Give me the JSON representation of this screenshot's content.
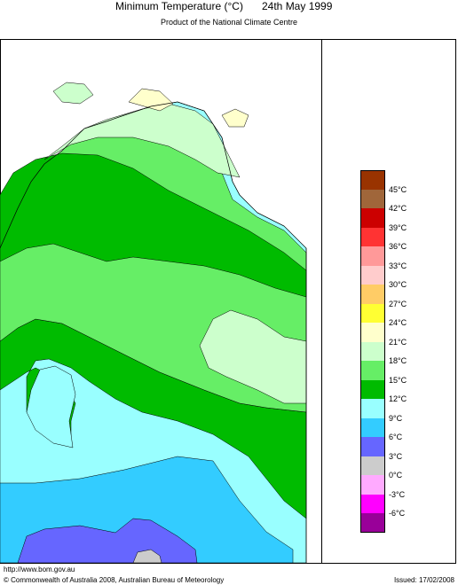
{
  "header": {
    "title": "Minimum Temperature (°C)",
    "date": "24th May 1999",
    "subtitle": "Product of the National Climate Centre"
  },
  "legend": {
    "labels": [
      "45°C",
      "42°C",
      "39°C",
      "36°C",
      "33°C",
      "30°C",
      "27°C",
      "24°C",
      "21°C",
      "18°C",
      "15°C",
      "12°C",
      "9°C",
      "6°C",
      "3°C",
      "0°C",
      "-3°C",
      "-6°C"
    ],
    "colors": [
      "#993300",
      "#a0663a",
      "#cc0000",
      "#ff3333",
      "#ff9999",
      "#ffcccc",
      "#ffcc66",
      "#ffff33",
      "#ffffcc",
      "#ccffcc",
      "#66ee66",
      "#00bb00",
      "#99ffff",
      "#33ccff",
      "#6666ff",
      "#cccccc",
      "#ffaaff",
      "#ff00ff",
      "#990099"
    ]
  },
  "map_colors": {
    "ocean": "#ffffff",
    "c9_12": "#99ffff",
    "c6_9": "#33ccff",
    "c3_6": "#6666ff",
    "c0_3": "#cccccc",
    "c12_15": "#00bb00",
    "c15_18": "#66ee66",
    "c18_21": "#ccffcc",
    "c21_24": "#ffffcc"
  },
  "footer": {
    "url": "http://www.bom.gov.au",
    "copyright": "© Commonwealth of Australia 2008, Australian Bureau of Meteorology",
    "issued": "Issued: 17/02/2008"
  }
}
